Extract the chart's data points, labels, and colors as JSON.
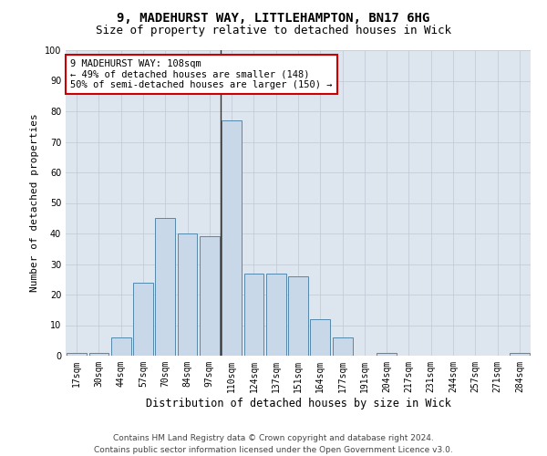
{
  "title1": "9, MADEHURST WAY, LITTLEHAMPTON, BN17 6HG",
  "title2": "Size of property relative to detached houses in Wick",
  "xlabel": "Distribution of detached houses by size in Wick",
  "ylabel": "Number of detached properties",
  "categories": [
    "17sqm",
    "30sqm",
    "44sqm",
    "57sqm",
    "70sqm",
    "84sqm",
    "97sqm",
    "110sqm",
    "124sqm",
    "137sqm",
    "151sqm",
    "164sqm",
    "177sqm",
    "191sqm",
    "204sqm",
    "217sqm",
    "231sqm",
    "244sqm",
    "257sqm",
    "271sqm",
    "284sqm"
  ],
  "values": [
    1,
    1,
    6,
    24,
    45,
    40,
    39,
    77,
    27,
    27,
    26,
    12,
    6,
    0,
    1,
    0,
    0,
    0,
    0,
    0,
    1
  ],
  "bar_color": "#c8d8e8",
  "bar_edge_color": "#5588aa",
  "vline_x_index": 7,
  "vline_color": "#333333",
  "annotation_text": "9 MADEHURST WAY: 108sqm\n← 49% of detached houses are smaller (148)\n50% of semi-detached houses are larger (150) →",
  "annotation_box_color": "#ffffff",
  "annotation_box_edge_color": "#cc0000",
  "ylim": [
    0,
    100
  ],
  "yticks": [
    0,
    10,
    20,
    30,
    40,
    50,
    60,
    70,
    80,
    90,
    100
  ],
  "background_color": "#dde5ef",
  "grid_color": "#c0c8d4",
  "footer_line1": "Contains HM Land Registry data © Crown copyright and database right 2024.",
  "footer_line2": "Contains public sector information licensed under the Open Government Licence v3.0.",
  "title1_fontsize": 10,
  "title2_fontsize": 9,
  "xlabel_fontsize": 8.5,
  "ylabel_fontsize": 8,
  "tick_fontsize": 7,
  "annotation_fontsize": 7.5,
  "footer_fontsize": 6.5
}
